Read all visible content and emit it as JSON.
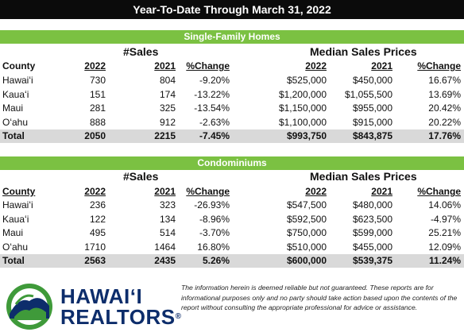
{
  "title": "Year-To-Date Through March 31, 2022",
  "columns": {
    "county": "County",
    "sales_group": "#Sales",
    "price_group": "Median Sales Prices",
    "y2022": "2022",
    "y2021": "2021",
    "change": "%Change"
  },
  "single_family": {
    "heading": "Single-Family Homes",
    "rows": [
      {
        "county": "Hawaiʻi",
        "s22": "730",
        "s21": "804",
        "sch": "-9.20%",
        "p22": "$525,000",
        "p21": "$450,000",
        "pch": "16.67%"
      },
      {
        "county": "Kauaʻi",
        "s22": "151",
        "s21": "174",
        "sch": "-13.22%",
        "p22": "$1,200,000",
        "p21": "$1,055,500",
        "pch": "13.69%"
      },
      {
        "county": "Maui",
        "s22": "281",
        "s21": "325",
        "sch": "-13.54%",
        "p22": "$1,150,000",
        "p21": "$955,000",
        "pch": "20.42%"
      },
      {
        "county": "Oʻahu",
        "s22": "888",
        "s21": "912",
        "sch": "-2.63%",
        "p22": "$1,100,000",
        "p21": "$915,000",
        "pch": "20.22%"
      }
    ],
    "total": {
      "county": "Total",
      "s22": "2050",
      "s21": "2215",
      "sch": "-7.45%",
      "p22": "$993,750",
      "p21": "$843,875",
      "pch": "17.76%"
    }
  },
  "condominiums": {
    "heading": "Condominiums",
    "rows": [
      {
        "county": "Hawaiʻi",
        "s22": "236",
        "s21": "323",
        "sch": "-26.93%",
        "p22": "$547,500",
        "p21": "$480,000",
        "pch": "14.06%"
      },
      {
        "county": "Kauaʻi",
        "s22": "122",
        "s21": "134",
        "sch": "-8.96%",
        "p22": "$592,500",
        "p21": "$623,500",
        "pch": "-4.97%"
      },
      {
        "county": "Maui",
        "s22": "495",
        "s21": "514",
        "sch": "-3.70%",
        "p22": "$750,000",
        "p21": "$599,000",
        "pch": "25.21%"
      },
      {
        "county": "Oʻahu",
        "s22": "1710",
        "s21": "1464",
        "sch": "16.80%",
        "p22": "$510,000",
        "p21": "$455,000",
        "pch": "12.09%"
      }
    ],
    "total": {
      "county": "Total",
      "s22": "2563",
      "s21": "2435",
      "sch": "5.26%",
      "p22": "$600,000",
      "p21": "$539,375",
      "pch": "11.24%"
    }
  },
  "logo": {
    "line1": "HAWAIʻI",
    "line2": "REALTORS",
    "mark": "®"
  },
  "disclaimer": "The information herein is deemed reliable but not guaranteed. These reports are for informational purposes only and no party should take action based upon the contents of the report without consulting the appropriate professional for advice or assistance.",
  "colors": {
    "banner": "#0b0b0b",
    "green": "#7bc142",
    "total_row": "#d9d9d9",
    "logo_blue": "#0d2d6b",
    "logo_green": "#3f9a3a"
  }
}
